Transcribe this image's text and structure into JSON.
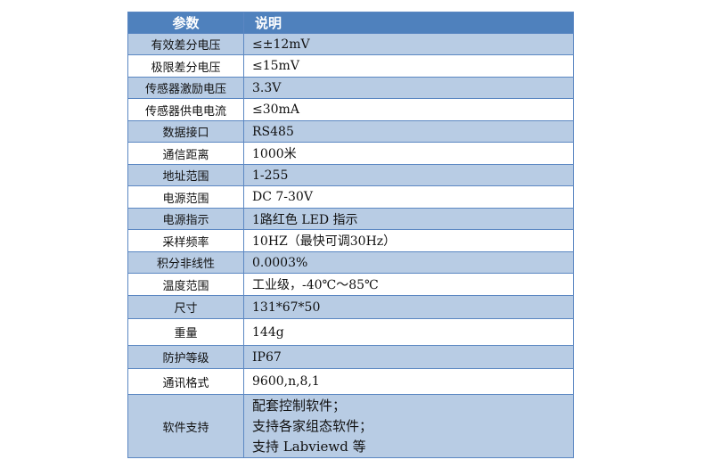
{
  "header": {
    "param": "参数",
    "desc": "说明"
  },
  "rows": [
    {
      "param": "有效差分电压",
      "desc": "≤±12mV",
      "shade": "blue"
    },
    {
      "param": "极限差分电压",
      "desc": "≤15mV",
      "shade": "white"
    },
    {
      "param": "传感器激励电压",
      "desc": "3.3V",
      "shade": "blue"
    },
    {
      "param": "传感器供电电流",
      "desc": "≤30mA",
      "shade": "white"
    },
    {
      "param": "数据接口",
      "desc": "RS485",
      "shade": "blue"
    },
    {
      "param": "通信距离",
      "desc": "1000米",
      "shade": "white"
    },
    {
      "param": "地址范围",
      "desc": "1-255",
      "shade": "blue"
    },
    {
      "param": "电源范围",
      "desc": "DC 7-30V",
      "shade": "white"
    },
    {
      "param": "电源指示",
      "desc": "1路红色 LED 指示",
      "shade": "blue"
    },
    {
      "param": "采样频率",
      "desc": "10HZ（最快可调30Hz）",
      "shade": "white"
    },
    {
      "param": "积分非线性",
      "desc": "0.0003%",
      "shade": "blue"
    },
    {
      "param": "温度范围",
      "desc": "工业级，-40℃～85℃",
      "shade": "white"
    },
    {
      "param": "尺寸",
      "desc": "131*67*50",
      "shade": "blue"
    },
    {
      "param": "重量",
      "desc": "144g",
      "shade": "white"
    },
    {
      "param": "防护等级",
      "desc": "IP67",
      "shade": "blue"
    },
    {
      "param": "通讯格式",
      "desc": "9600,n,8,1",
      "shade": "white"
    }
  ],
  "software": {
    "param": "软件支持",
    "lines": [
      "配套控制软件；",
      "支持各家组态软件；",
      "支持 Labviewd 等"
    ]
  },
  "colors": {
    "header": "#4f81bd",
    "shaded_row": "#b8cce4",
    "border": "#5b87c2"
  }
}
